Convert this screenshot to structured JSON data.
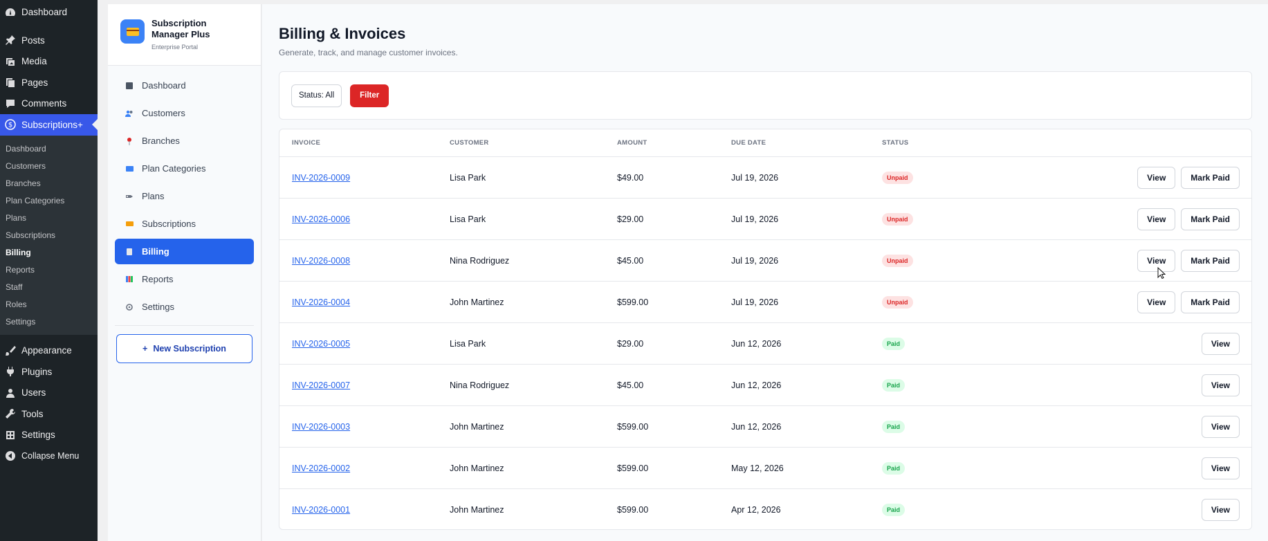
{
  "wp_menu": {
    "dashboard": "Dashboard",
    "items": [
      {
        "label": "Posts",
        "icon": "pin-icon"
      },
      {
        "label": "Media",
        "icon": "media-icon"
      },
      {
        "label": "Pages",
        "icon": "pages-icon"
      },
      {
        "label": "Comments",
        "icon": "comments-icon"
      }
    ],
    "active": {
      "label": "Subscriptions+",
      "icon": "dollar-icon"
    },
    "submenu": [
      "Dashboard",
      "Customers",
      "Branches",
      "Plan Categories",
      "Plans",
      "Subscriptions",
      "Billing",
      "Reports",
      "Staff",
      "Roles",
      "Settings"
    ],
    "current_sub": "Billing",
    "items_bottom": [
      {
        "label": "Appearance",
        "icon": "brush-icon"
      },
      {
        "label": "Plugins",
        "icon": "plug-icon"
      },
      {
        "label": "Users",
        "icon": "user-icon"
      },
      {
        "label": "Tools",
        "icon": "wrench-icon"
      },
      {
        "label": "Settings",
        "icon": "settings-icon"
      },
      {
        "label": "Collapse Menu",
        "icon": "collapse-icon"
      }
    ]
  },
  "app": {
    "brand_title": "Subscription Manager Plus",
    "brand_sub": "Enterprise Portal",
    "nav": [
      {
        "label": "Dashboard",
        "icon": "square-icon"
      },
      {
        "label": "Customers",
        "icon": "customers-icon"
      },
      {
        "label": "Branches",
        "icon": "pin-icon"
      },
      {
        "label": "Plan Categories",
        "icon": "folder-icon"
      },
      {
        "label": "Plans",
        "icon": "tag-icon"
      },
      {
        "label": "Subscriptions",
        "icon": "card-icon"
      },
      {
        "label": "Billing",
        "icon": "doc-icon"
      },
      {
        "label": "Reports",
        "icon": "chart-icon"
      },
      {
        "label": "Settings",
        "icon": "gear-icon"
      }
    ],
    "active_nav": "Billing",
    "new_sub_label": "New Subscription"
  },
  "page": {
    "title": "Billing & Invoices",
    "subtitle": "Generate, track, and manage customer invoices.",
    "status_filter": "Status: All",
    "filter_label": "Filter"
  },
  "table": {
    "columns": [
      "INVOICE",
      "CUSTOMER",
      "AMOUNT",
      "DUE DATE",
      "STATUS"
    ],
    "rows": [
      {
        "invoice": "INV-2026-0009",
        "customer": "Lisa Park",
        "amount": "$49.00",
        "due": "Jul 19, 2026",
        "status": "Unpaid"
      },
      {
        "invoice": "INV-2026-0006",
        "customer": "Lisa Park",
        "amount": "$29.00",
        "due": "Jul 19, 2026",
        "status": "Unpaid"
      },
      {
        "invoice": "INV-2026-0008",
        "customer": "Nina Rodriguez",
        "amount": "$45.00",
        "due": "Jul 19, 2026",
        "status": "Unpaid"
      },
      {
        "invoice": "INV-2026-0004",
        "customer": "John Martinez",
        "amount": "$599.00",
        "due": "Jul 19, 2026",
        "status": "Unpaid"
      },
      {
        "invoice": "INV-2026-0005",
        "customer": "Lisa Park",
        "amount": "$29.00",
        "due": "Jun 12, 2026",
        "status": "Paid"
      },
      {
        "invoice": "INV-2026-0007",
        "customer": "Nina Rodriguez",
        "amount": "$45.00",
        "due": "Jun 12, 2026",
        "status": "Paid"
      },
      {
        "invoice": "INV-2026-0003",
        "customer": "John Martinez",
        "amount": "$599.00",
        "due": "Jun 12, 2026",
        "status": "Paid"
      },
      {
        "invoice": "INV-2026-0002",
        "customer": "John Martinez",
        "amount": "$599.00",
        "due": "May 12, 2026",
        "status": "Paid"
      },
      {
        "invoice": "INV-2026-0001",
        "customer": "John Martinez",
        "amount": "$599.00",
        "due": "Apr 12, 2026",
        "status": "Paid"
      }
    ],
    "view_label": "View",
    "mark_paid_label": "Mark Paid"
  }
}
